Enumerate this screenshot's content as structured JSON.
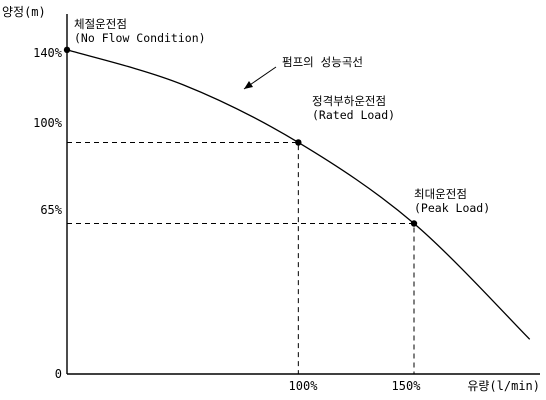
{
  "chart_data": {
    "type": "line",
    "ylabel": "양정(m)",
    "xlabel": "유량(l/min)",
    "y_ticks": [
      "140%",
      "100%",
      "65%",
      "0"
    ],
    "x_ticks": [
      "100%",
      "150%"
    ],
    "xlim": [
      0,
      210
    ],
    "ylim": [
      0,
      150
    ],
    "series": [
      {
        "name": "펌프의 성능곡선",
        "x": [
          0,
          50,
          100,
          150,
          200
        ],
        "y": [
          140,
          125,
          100,
          65,
          15
        ]
      }
    ],
    "points": [
      {
        "x": 0,
        "y": 140,
        "label": "체절운전점",
        "sublabel": "(No Flow Condition)"
      },
      {
        "x": 100,
        "y": 100,
        "label": "정격부하운전점",
        "sublabel": "(Rated Load)"
      },
      {
        "x": 150,
        "y": 65,
        "label": "최대운전점",
        "sublabel": "(Peak Load)"
      }
    ],
    "guides": [
      {
        "x": 100,
        "y": 100
      },
      {
        "x": 150,
        "y": 65
      }
    ],
    "grid": false,
    "legend": "none"
  }
}
